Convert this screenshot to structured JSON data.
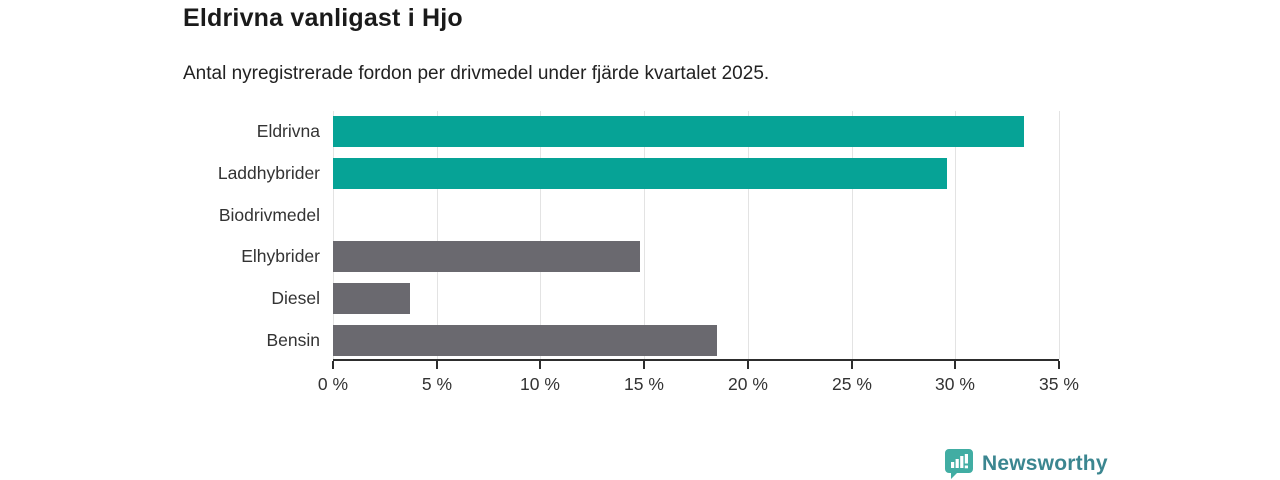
{
  "title": "Eldrivna vanligast i Hjo",
  "subtitle": "Antal nyregistrerade fordon per drivmedel under fjärde kvartalet 2025.",
  "chart_data": {
    "type": "bar",
    "orientation": "horizontal",
    "title": "Eldrivna vanligast i Hjo",
    "subtitle": "Antal nyregistrerade fordon per drivmedel under fjärde kvartalet 2025.",
    "categories": [
      "Eldrivna",
      "Laddhybrider",
      "Biodrivmedel",
      "Elhybrider",
      "Diesel",
      "Bensin"
    ],
    "values": [
      33.3,
      29.6,
      0,
      14.8,
      3.7,
      18.5
    ],
    "unit": "%",
    "bar_colors": [
      "#06a396",
      "#06a396",
      "#6a696f",
      "#6a696f",
      "#6a696f",
      "#6a696f"
    ],
    "xlim": [
      0,
      35
    ],
    "x_ticks": [
      0,
      5,
      10,
      15,
      20,
      25,
      30,
      35
    ],
    "x_tick_labels": [
      "0 %",
      "5 %",
      "10 %",
      "15 %",
      "20 %",
      "25 %",
      "30 %",
      "35 %"
    ],
    "grid": true,
    "legend": "none",
    "xlabel": "",
    "ylabel": ""
  },
  "colors": {
    "teal_bar": "#06a396",
    "gray_bar": "#6a696f",
    "gridline": "#e3e3e3",
    "axis": "#2d2d2d",
    "title_text": "#1a1a1a",
    "subtitle_text": "#222222",
    "tick_text": "#333333",
    "background": "#ffffff"
  },
  "branding": {
    "logo_text": "Newsworthy",
    "logo_icon": "newsworthy-chart-bubble-icon",
    "logo_text_color": "#3b8690",
    "logo_icon_color": "#41ada3"
  }
}
